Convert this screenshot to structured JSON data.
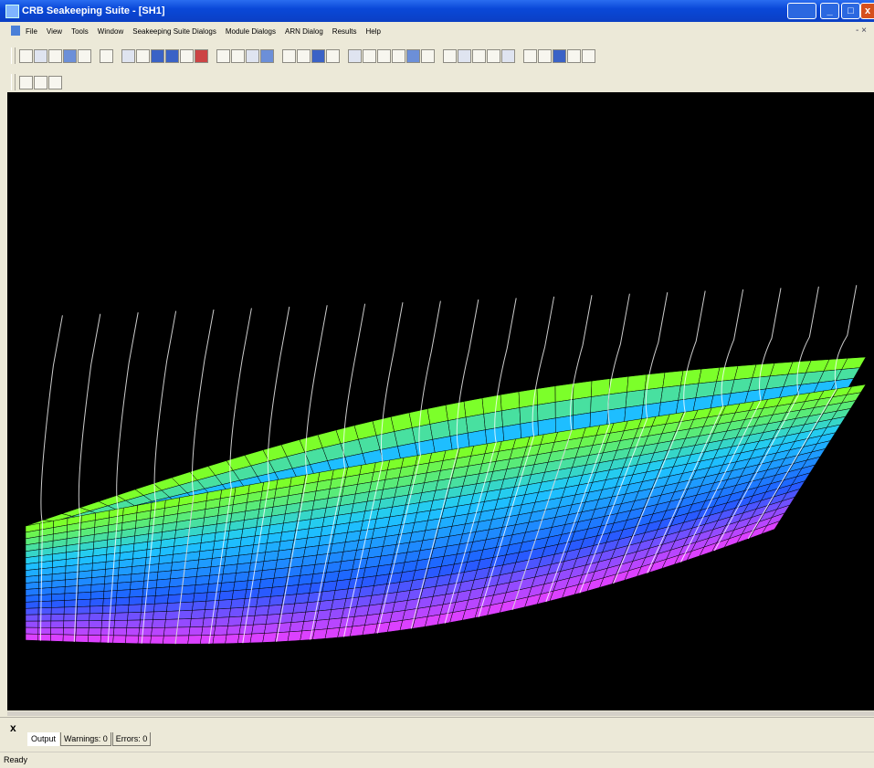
{
  "window": {
    "title": "CRB Seakeeping Suite - [SH1]",
    "min": "_",
    "max": "□",
    "close": "x"
  },
  "menu": [
    "File",
    "View",
    "Tools",
    "Window",
    "Seakeeping Suite Dialogs",
    "Module Dialogs",
    "ARN Dialog",
    "Results",
    "Help"
  ],
  "mdi_controls": "- ×",
  "toolbar1": {
    "button_count": 36
  },
  "toolbar2": {
    "button_count": 3
  },
  "output_panel": {
    "close_label": "x",
    "tabs": {
      "output": "Output",
      "warnings": "Warnings: 0",
      "errors": "Errors: 0"
    }
  },
  "status": {
    "text": "Ready"
  },
  "colors": {
    "viewport_bg": "#000000",
    "hull_top": "#7cff2a",
    "hull_mid": "#1ec8ff",
    "hull_low": "#1e5cff",
    "hull_bottom": "#ff3cff",
    "frame_lines": "#ffffff"
  }
}
